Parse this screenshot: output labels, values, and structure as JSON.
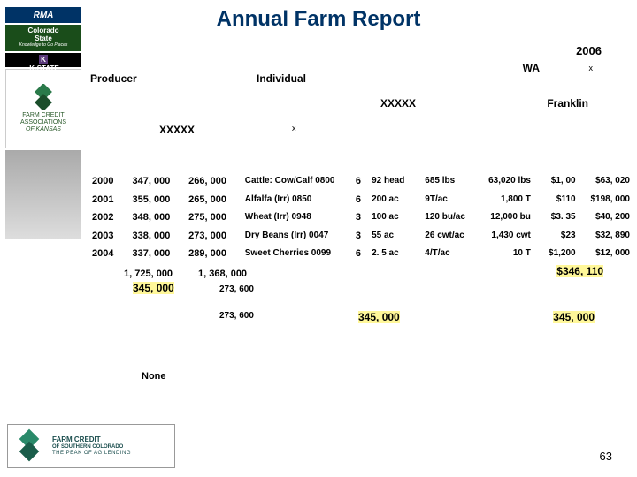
{
  "title": "Annual Farm Report",
  "year": "2006",
  "state": "WA",
  "x1": "x",
  "producer_label": "Producer",
  "individual_label": "Individual",
  "mask1": "XXXXX",
  "county": "Franklin",
  "mask2": "XXXXX",
  "x2": "x",
  "rows": [
    {
      "yr": "2000",
      "a": "347, 000",
      "b": "266, 000",
      "desc": "Cattle: Cow/Calf 0800",
      "c": "6",
      "d": "92 head",
      "e": "685 lbs",
      "f": "63,020 lbs",
      "g": "$1, 00",
      "h": "$63, 020"
    },
    {
      "yr": "2001",
      "a": "355, 000",
      "b": "265, 000",
      "desc": "Alfalfa (Irr) 0850",
      "c": "6",
      "d": "200 ac",
      "e": "9T/ac",
      "f": "1,800 T",
      "g": "$110",
      "h": "$198, 000"
    },
    {
      "yr": "2002",
      "a": "348, 000",
      "b": "275, 000",
      "desc": "Wheat (Irr) 0948",
      "c": "3",
      "d": "100 ac",
      "e": "120 bu/ac",
      "f": "12,000 bu",
      "g": "$3. 35",
      "h": "$40, 200"
    },
    {
      "yr": "2003",
      "a": "338, 000",
      "b": "273, 000",
      "desc": "Dry Beans (Irr) 0047",
      "c": "3",
      "d": "55 ac",
      "e": "26 cwt/ac",
      "f": "1,430 cwt",
      "g": "$23",
      "h": "$32, 890"
    },
    {
      "yr": "2004",
      "a": "337, 000",
      "b": "289, 000",
      "desc": "Sweet Cherries 0099",
      "c": "6",
      "d": "2. 5 ac",
      "e": "4/T/ac",
      "f": "10 T",
      "g": "$1,200",
      "h": "$12, 000"
    }
  ],
  "sum_a": "1, 725, 000",
  "sum_b": "1, 368, 000",
  "avg_a": "345, 000",
  "v273a": "273, 600",
  "v273b": "273, 600",
  "right_total": "$346, 110",
  "mid_345": "345, 000",
  "right_345": "345, 000",
  "none": "None",
  "page": "63",
  "logos": {
    "rma": "RMA",
    "csu_l1": "Colorado",
    "csu_l2": "State",
    "csu_tag": "Knowledge to Go Places",
    "kstate": "K-STATE",
    "fca_l1": "FARM CREDIT",
    "fca_l2": "ASSOCIATIONS",
    "fca_l3": "OF KANSAS",
    "footer_l1": "FARM CREDIT",
    "footer_l2": "OF SOUTHERN COLORADO",
    "footer_tag": "THE PEAK OF AG LENDING"
  }
}
